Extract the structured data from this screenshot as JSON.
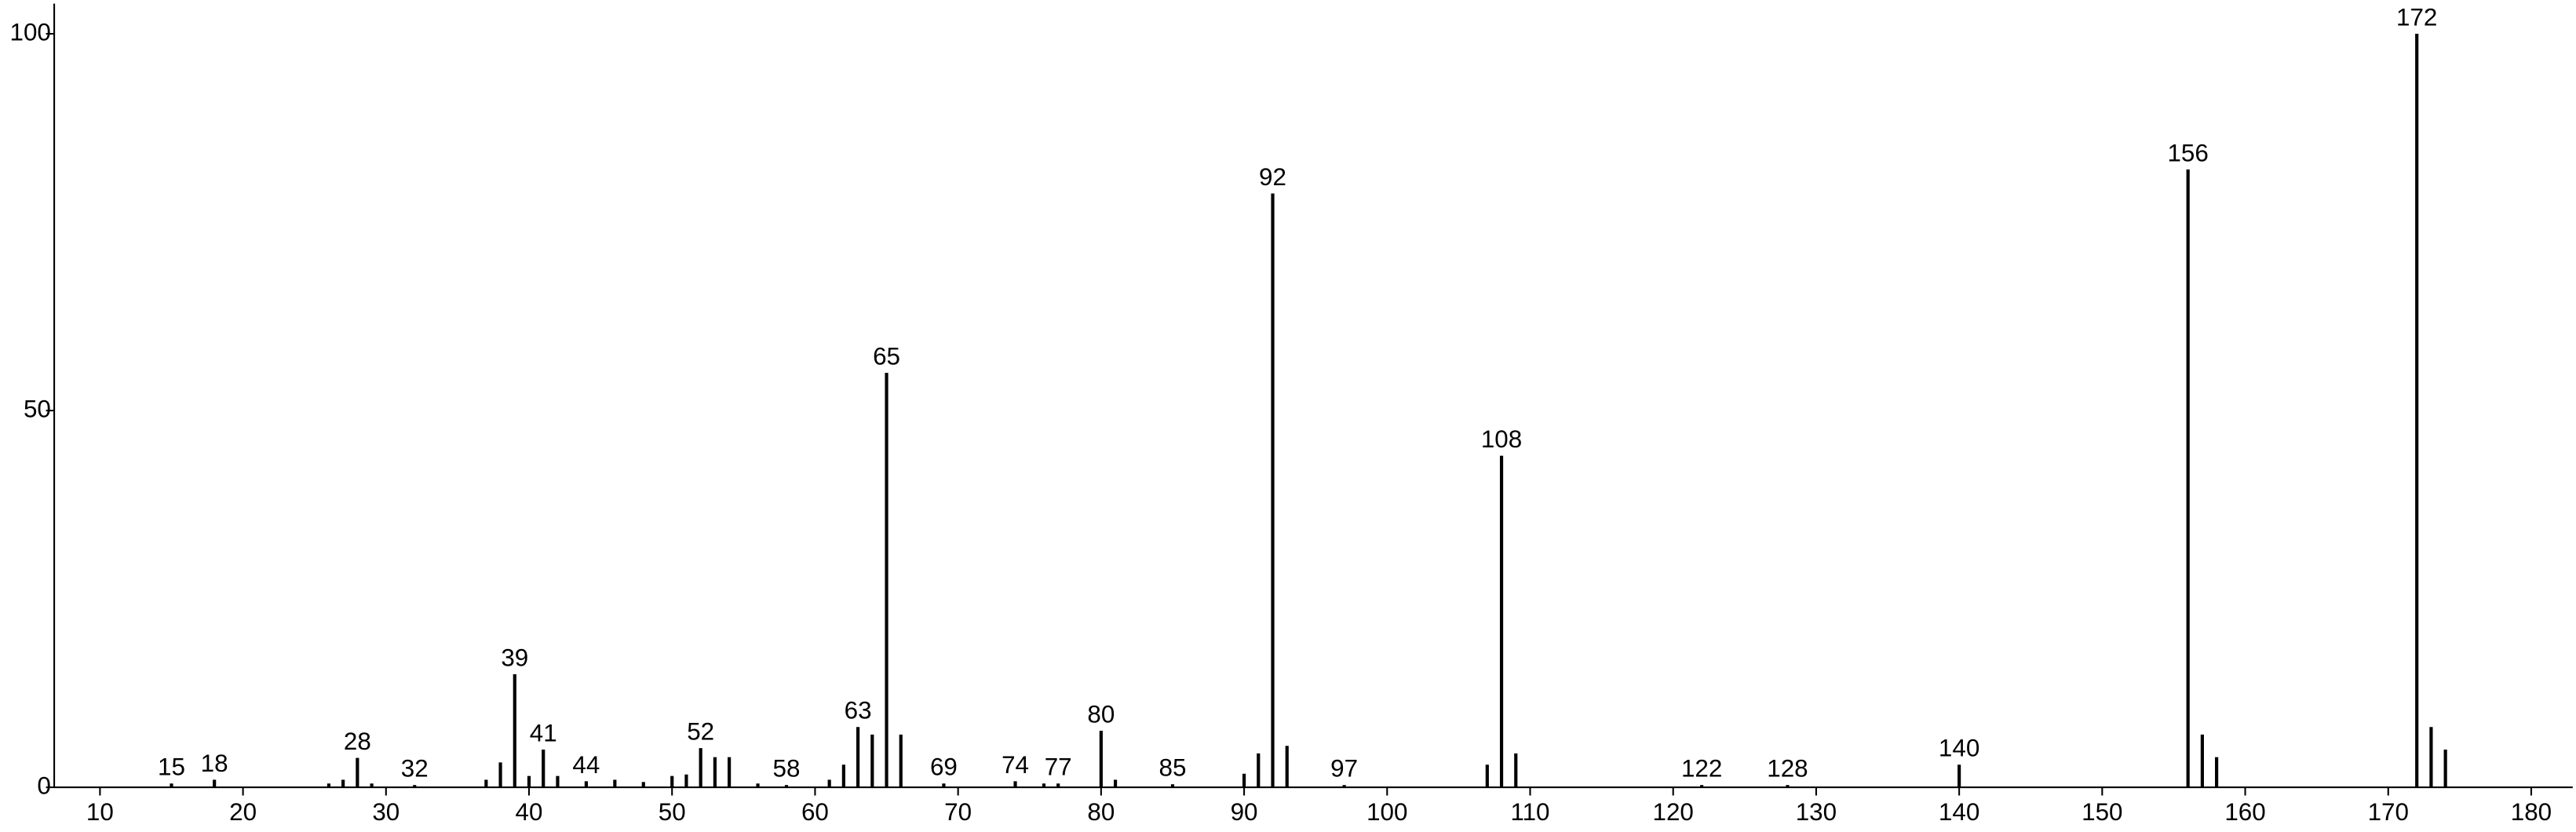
{
  "chart_data": {
    "type": "stem",
    "x": [
      15,
      18,
      26,
      27,
      28,
      29,
      32,
      37,
      38,
      39,
      40,
      41,
      42,
      44,
      46,
      48,
      50,
      51,
      52,
      53,
      54,
      56,
      58,
      61,
      62,
      63,
      64,
      65,
      66,
      69,
      74,
      76,
      77,
      80,
      81,
      85,
      90,
      91,
      92,
      93,
      97,
      107,
      108,
      109,
      122,
      128,
      140,
      156,
      157,
      158,
      172,
      173,
      174
    ],
    "values": [
      0.5,
      1,
      0.5,
      1,
      3.9,
      0.5,
      0.3,
      1,
      3.3,
      15,
      1.5,
      5,
      1.5,
      0.8,
      1,
      0.7,
      1.5,
      1.7,
      5.2,
      4,
      4,
      0.5,
      0.3,
      1,
      3,
      8,
      7,
      55,
      7,
      0.5,
      0.8,
      0.5,
      0.5,
      7.5,
      1,
      0.4,
      1.8,
      4.5,
      78.8,
      5.5,
      0.3,
      3,
      44,
      4.5,
      0.3,
      0.3,
      3,
      82,
      7,
      4,
      100,
      8,
      5
    ],
    "peak_labels": [
      15,
      18,
      28,
      32,
      39,
      41,
      44,
      52,
      58,
      63,
      65,
      69,
      74,
      77,
      80,
      85,
      92,
      97,
      108,
      122,
      128,
      140,
      156,
      172
    ],
    "color": "#000000",
    "xlim": [
      6.8,
      182.9
    ],
    "ylim": [
      0,
      104
    ],
    "xticks": [
      10,
      20,
      30,
      40,
      50,
      60,
      70,
      80,
      90,
      100,
      110,
      120,
      130,
      140,
      150,
      160,
      170,
      180
    ],
    "yticks": [
      0,
      50,
      100
    ]
  }
}
